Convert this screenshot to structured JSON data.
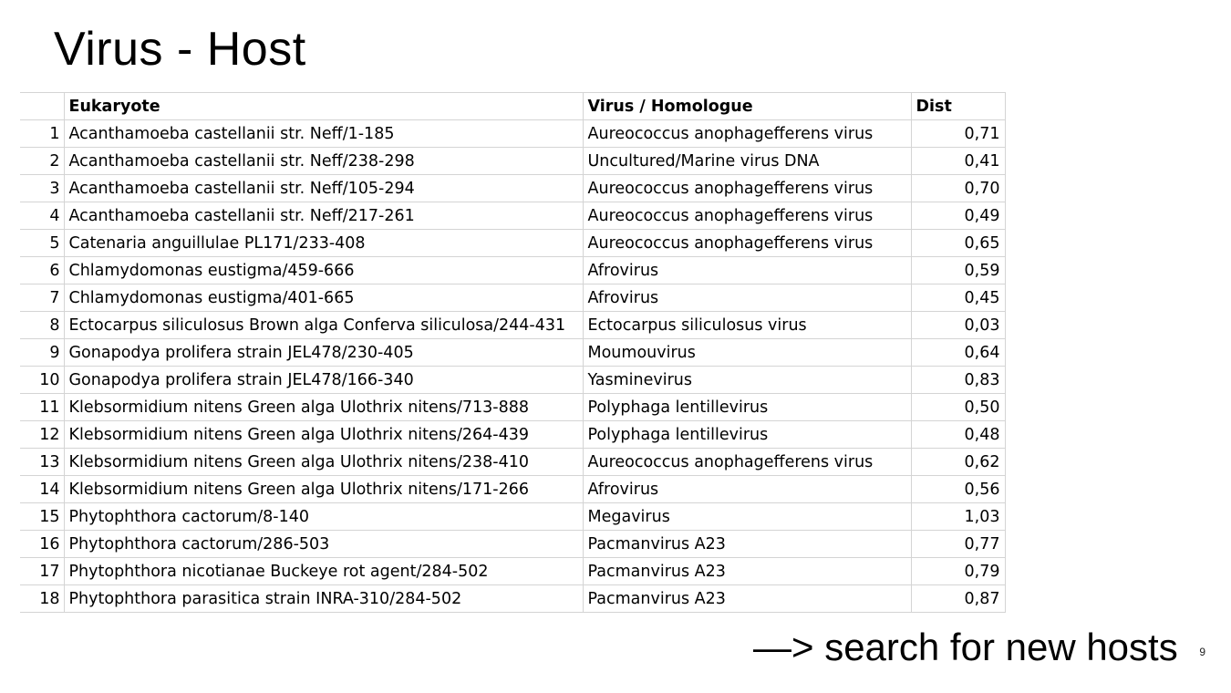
{
  "slide": {
    "title": "Virus - Host",
    "footer_text": "—> search for new hosts",
    "page_number": "9"
  },
  "table": {
    "headers": {
      "index": "",
      "eukaryote": "Eukaryote",
      "virus": "Virus / Homologue",
      "dist": "Dist"
    },
    "rows": [
      {
        "index": "1",
        "eukaryote": "Acanthamoeba castellanii str. Neff/1-185",
        "virus": "Aureococcus anophagefferens virus",
        "dist": "0,71"
      },
      {
        "index": "2",
        "eukaryote": "Acanthamoeba castellanii str. Neff/238-298",
        "virus": "Uncultured/Marine virus DNA",
        "dist": "0,41"
      },
      {
        "index": "3",
        "eukaryote": "Acanthamoeba castellanii str. Neff/105-294",
        "virus": "Aureococcus anophagefferens virus",
        "dist": "0,70"
      },
      {
        "index": "4",
        "eukaryote": "Acanthamoeba castellanii str. Neff/217-261",
        "virus": "Aureococcus anophagefferens virus",
        "dist": "0,49"
      },
      {
        "index": "5",
        "eukaryote": "Catenaria anguillulae PL171/233-408",
        "virus": "Aureococcus anophagefferens virus",
        "dist": "0,65"
      },
      {
        "index": "6",
        "eukaryote": "Chlamydomonas eustigma/459-666",
        "virus": "Afrovirus",
        "dist": "0,59"
      },
      {
        "index": "7",
        "eukaryote": "Chlamydomonas eustigma/401-665",
        "virus": "Afrovirus",
        "dist": "0,45"
      },
      {
        "index": "8",
        "eukaryote": "Ectocarpus siliculosus Brown alga Conferva siliculosa/244-431",
        "virus": "Ectocarpus siliculosus virus",
        "dist": "0,03"
      },
      {
        "index": "9",
        "eukaryote": "Gonapodya prolifera strain JEL478/230-405",
        "virus": "Moumouvirus",
        "dist": "0,64"
      },
      {
        "index": "10",
        "eukaryote": "Gonapodya prolifera strain JEL478/166-340",
        "virus": "Yasminevirus",
        "dist": "0,83"
      },
      {
        "index": "11",
        "eukaryote": "Klebsormidium nitens Green alga Ulothrix nitens/713-888",
        "virus": "Polyphaga lentillevirus",
        "dist": "0,50"
      },
      {
        "index": "12",
        "eukaryote": "Klebsormidium nitens Green alga Ulothrix nitens/264-439",
        "virus": "Polyphaga lentillevirus",
        "dist": "0,48"
      },
      {
        "index": "13",
        "eukaryote": "Klebsormidium nitens Green alga Ulothrix nitens/238-410",
        "virus": "Aureococcus anophagefferens virus",
        "dist": "0,62"
      },
      {
        "index": "14",
        "eukaryote": "Klebsormidium nitens Green alga Ulothrix nitens/171-266",
        "virus": "Afrovirus",
        "dist": "0,56"
      },
      {
        "index": "15",
        "eukaryote": "Phytophthora cactorum/8-140",
        "virus": "Megavirus",
        "dist": "1,03"
      },
      {
        "index": "16",
        "eukaryote": "Phytophthora cactorum/286-503",
        "virus": "Pacmanvirus A23",
        "dist": "0,77"
      },
      {
        "index": "17",
        "eukaryote": "Phytophthora nicotianae Buckeye rot agent/284-502",
        "virus": "Pacmanvirus A23",
        "dist": "0,79"
      },
      {
        "index": "18",
        "eukaryote": "Phytophthora parasitica strain INRA-310/284-502",
        "virus": "Pacmanvirus A23",
        "dist": "0,87"
      }
    ]
  }
}
